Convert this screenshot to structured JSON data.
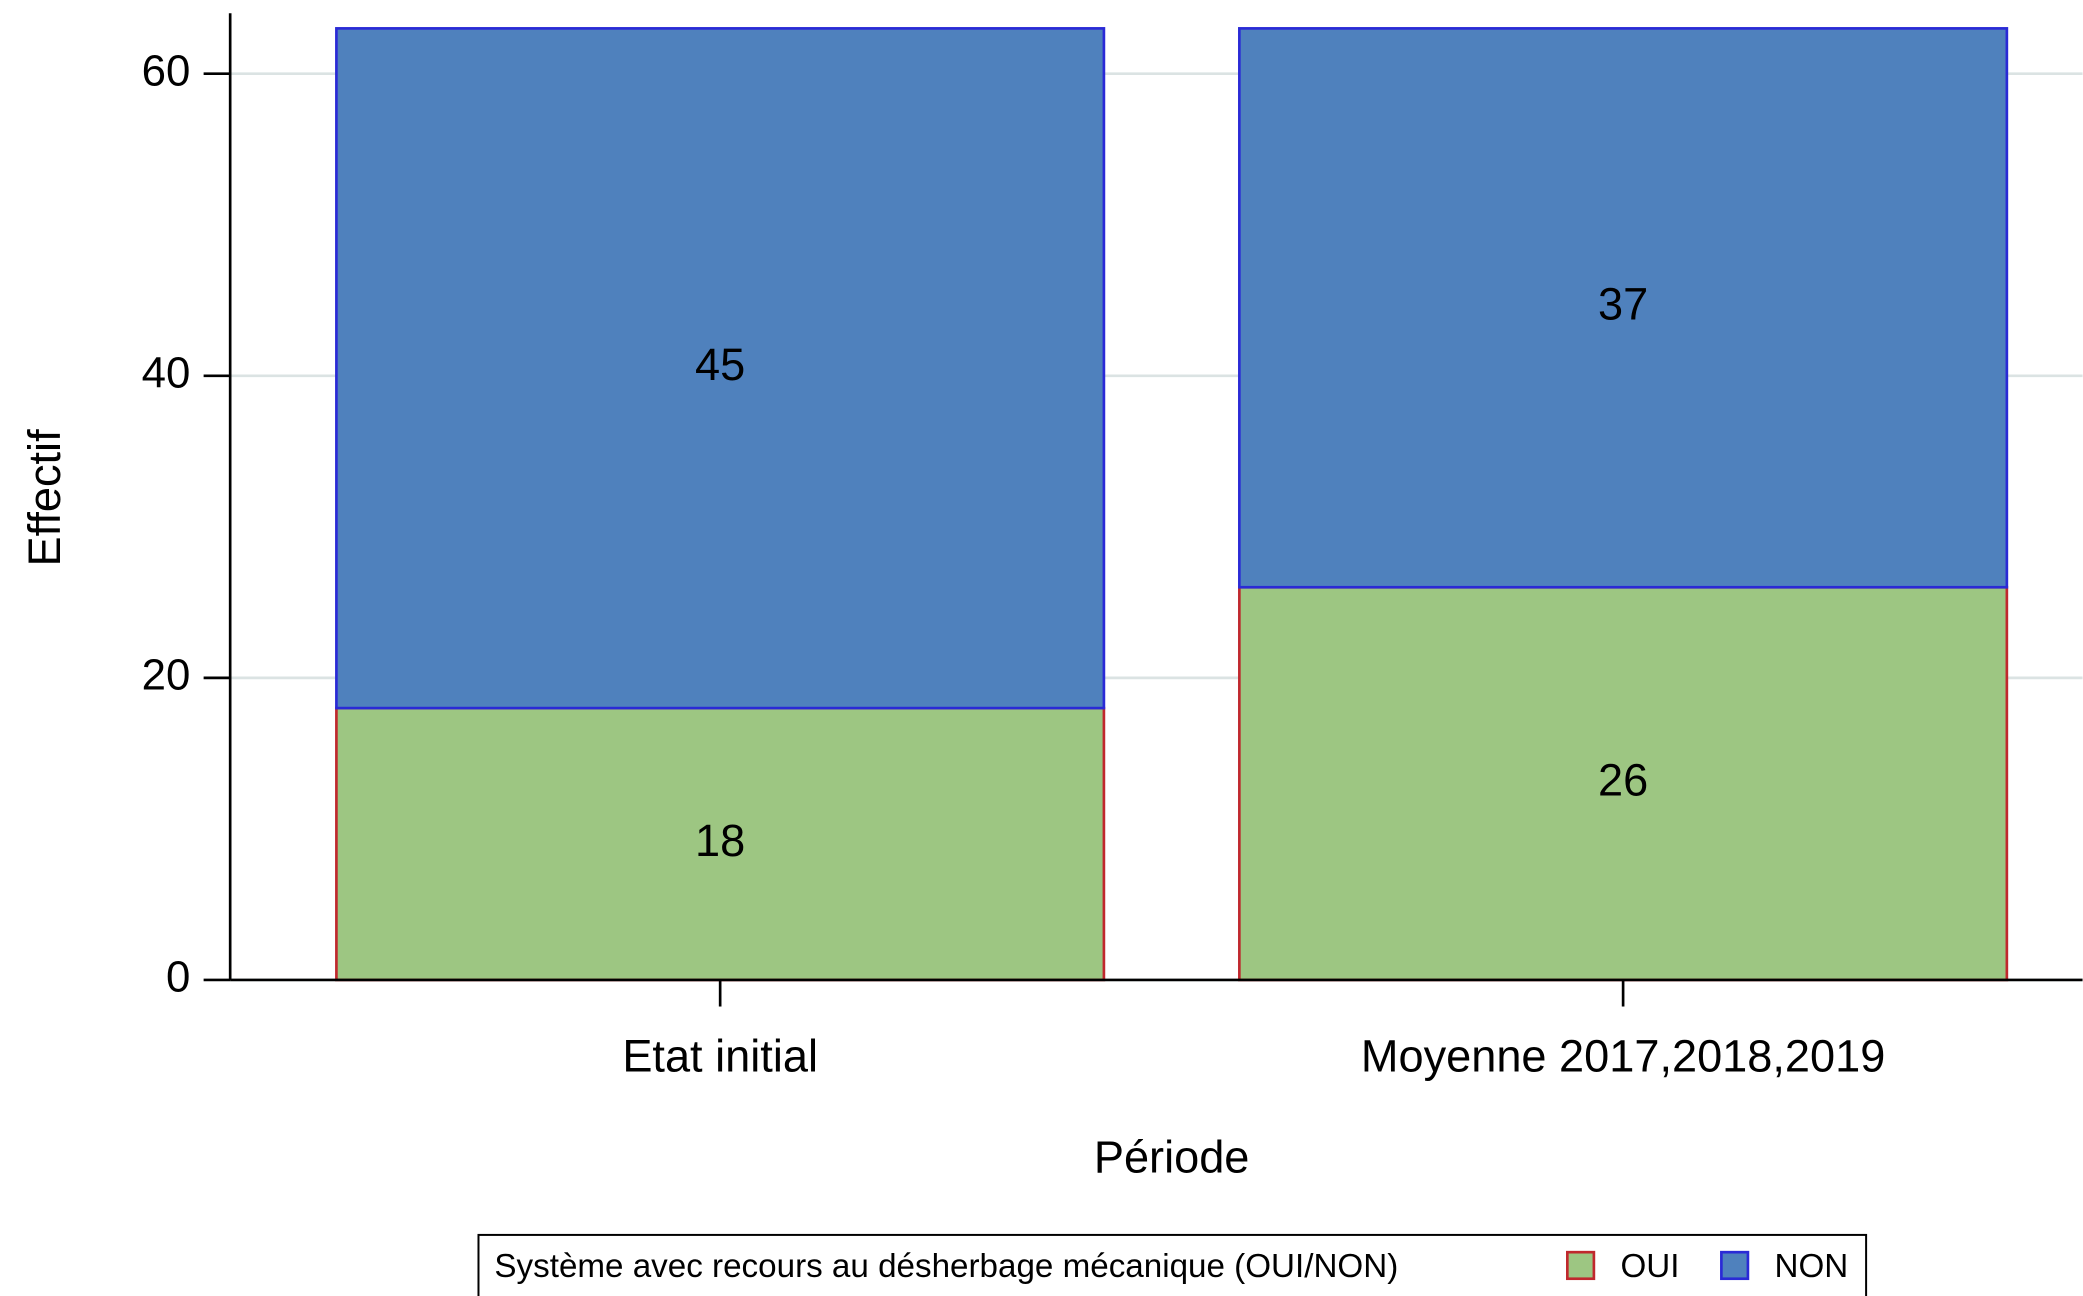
{
  "chart_data": {
    "type": "stacked_bar",
    "x_label": "Période",
    "y_label": "Effectif",
    "categories": [
      "Etat initial",
      "Moyenne 2017,2018,2019"
    ],
    "series": [
      {
        "name": "OUI",
        "color": "#9dc682",
        "edgecolor": "#c0282d",
        "values": [
          18,
          26
        ]
      },
      {
        "name": "NON",
        "color": "#4f81bd",
        "edgecolor": "#2a2ad6",
        "values": [
          45,
          37
        ]
      }
    ],
    "ylim": [
      0,
      64
    ],
    "yticks": [
      0,
      20,
      40,
      60
    ],
    "grid": true,
    "legend_title": "Système avec recours au désherbage mécanique (OUI/NON)",
    "legend": "bottom"
  }
}
